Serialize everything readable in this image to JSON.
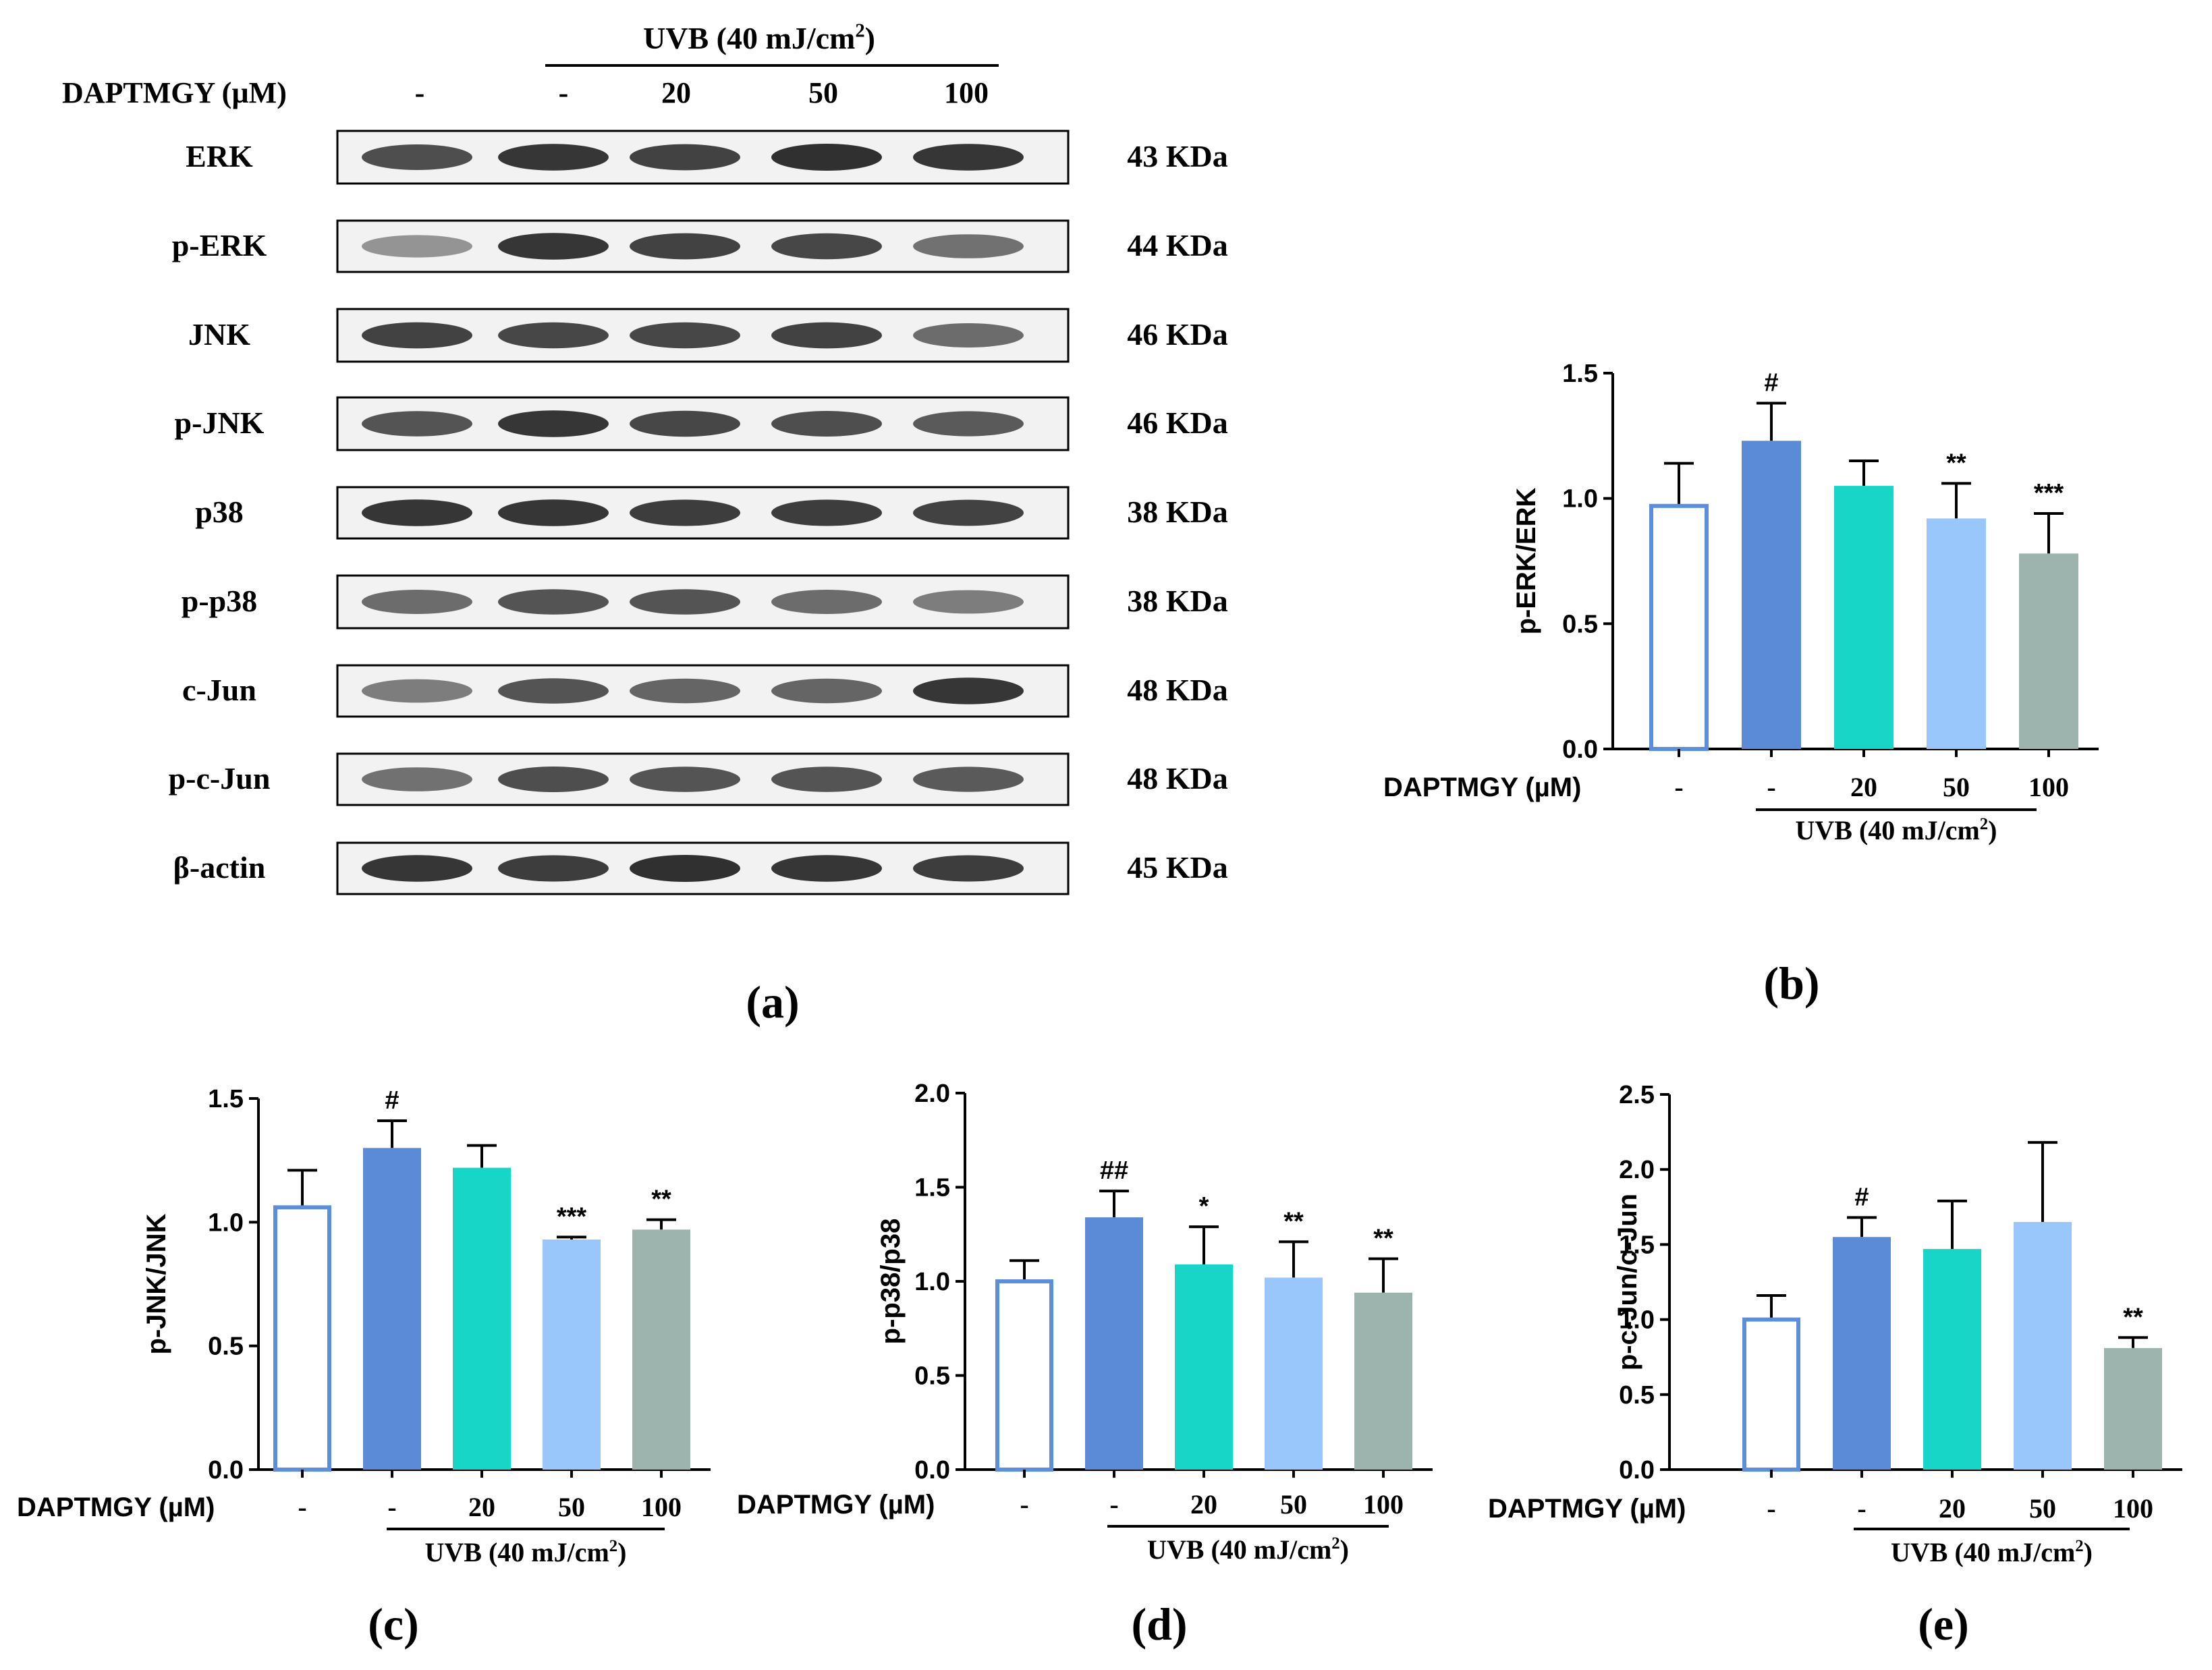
{
  "figure": {
    "uvb_header": "UVB (40 mJ/cm",
    "uvb_sup": "2",
    "uvb_close": ")",
    "treatment_label": "DAPTMGY (µM)",
    "lanes": [
      "-",
      "-",
      "20",
      "50",
      "100"
    ]
  },
  "blot": {
    "label": "(a)",
    "rows": [
      {
        "protein": "ERK",
        "mw": "43 KDa"
      },
      {
        "protein": "p-ERK",
        "mw": "44 KDa"
      },
      {
        "protein": "JNK",
        "mw": "46 KDa"
      },
      {
        "protein": "p-JNK",
        "mw": "46 KDa"
      },
      {
        "protein": "p38",
        "mw": "38 KDa"
      },
      {
        "protein": "p-p38",
        "mw": "38 KDa"
      },
      {
        "protein": "c-Jun",
        "mw": "48 KDa"
      },
      {
        "protein": "p-c-Jun",
        "mw": "48 KDa"
      },
      {
        "protein": "β-actin",
        "mw": "45 KDa"
      }
    ]
  },
  "colors": {
    "control_edge": "#5b8fdc",
    "uvb": "#5b8bd6",
    "dose20": "#17d6c8",
    "dose50": "#99c6fb",
    "dose100": "#9db4ae"
  },
  "chart_data": [
    {
      "panel": "(b)",
      "type": "bar",
      "ylabel": "p-ERK/ERK",
      "ylim": [
        0,
        1.5
      ],
      "ticks": [
        "0.0",
        "0.5",
        "1.0",
        "1.5"
      ],
      "categories": [
        "-",
        "-",
        "20",
        "50",
        "100"
      ],
      "values": [
        0.97,
        1.23,
        1.05,
        0.92,
        0.78
      ],
      "errors": [
        0.17,
        0.15,
        0.1,
        0.14,
        0.16
      ],
      "annotations": [
        "",
        "#",
        "",
        "**",
        "***"
      ]
    },
    {
      "panel": "(c)",
      "type": "bar",
      "ylabel": "p-JNK/JNK",
      "ylim": [
        0,
        1.5
      ],
      "ticks": [
        "0.0",
        "0.5",
        "1.0",
        "1.5"
      ],
      "categories": [
        "-",
        "-",
        "20",
        "50",
        "100"
      ],
      "values": [
        1.06,
        1.3,
        1.22,
        0.93,
        0.97
      ],
      "errors": [
        0.15,
        0.11,
        0.09,
        0.01,
        0.04
      ],
      "annotations": [
        "",
        "#",
        "",
        "***",
        "**"
      ]
    },
    {
      "panel": "(d)",
      "type": "bar",
      "ylabel": "p-p38/p38",
      "ylim": [
        0,
        2.0
      ],
      "ticks": [
        "0.0",
        "0.5",
        "1.0",
        "1.5",
        "2.0"
      ],
      "categories": [
        "-",
        "-",
        "20",
        "50",
        "100"
      ],
      "values": [
        1.0,
        1.34,
        1.09,
        1.02,
        0.94
      ],
      "errors": [
        0.11,
        0.14,
        0.2,
        0.19,
        0.18
      ],
      "annotations": [
        "",
        "##",
        "*",
        "**",
        "**"
      ]
    },
    {
      "panel": "(e)",
      "type": "bar",
      "ylabel": "p-c-Jun/c-Jun",
      "ylim": [
        0,
        2.5
      ],
      "ticks": [
        "0.0",
        "0.5",
        "1.0",
        "1.5",
        "2.0",
        "2.5"
      ],
      "categories": [
        "-",
        "-",
        "20",
        "50",
        "100"
      ],
      "values": [
        1.0,
        1.55,
        1.47,
        1.65,
        0.81
      ],
      "errors": [
        0.16,
        0.13,
        0.32,
        0.53,
        0.07
      ],
      "annotations": [
        "",
        "#",
        "",
        "",
        "**"
      ]
    }
  ]
}
